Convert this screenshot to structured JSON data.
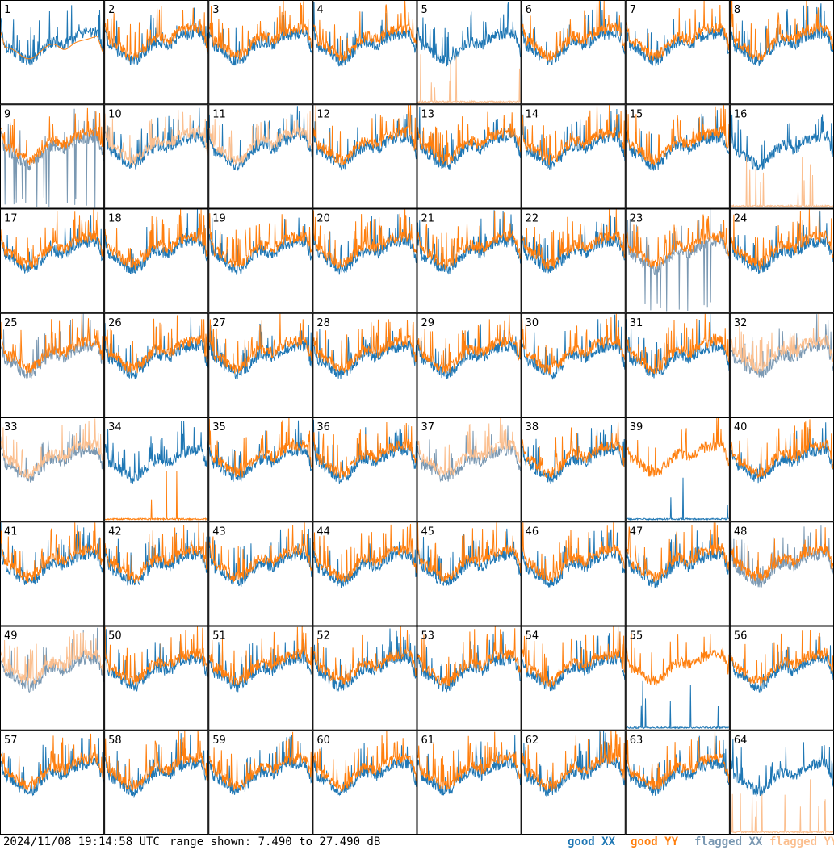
{
  "footer": {
    "timestamp": "2024/11/08 19:14:58 UTC",
    "range_text": "range shown: 7.490 to 27.490 dB"
  },
  "legend": [
    {
      "word": "good",
      "pol": "XX",
      "color": "#1f77b4"
    },
    {
      "word": "good",
      "pol": "YY",
      "color": "#ff7f0e"
    },
    {
      "word": "flagged",
      "pol": "XX",
      "color": "#7a98b2"
    },
    {
      "word": "flagged",
      "pol": "YY",
      "color": "#fbbf8f"
    }
  ],
  "chart_data": {
    "type": "line",
    "layout": "8x8 small multiples, one panel per antenna",
    "y_unit": "dB",
    "ylim": [
      7.49,
      27.49
    ],
    "grid": false,
    "legend_position": "bottom-right",
    "series_colors": {
      "good_xx": "#1f77b4",
      "good_yy": "#ff7f0e",
      "flagged_xx": "#7a98b2",
      "flagged_yy": "#fbbf8f"
    },
    "panels": [
      {
        "id": "1",
        "xx": "good",
        "yy": "good",
        "note": "XX high on right, YY smooth mid"
      },
      {
        "id": "2",
        "xx": "good",
        "yy": "good"
      },
      {
        "id": "3",
        "xx": "good",
        "yy": "good"
      },
      {
        "id": "4",
        "xx": "good",
        "yy": "good"
      },
      {
        "id": "5",
        "xx": "good",
        "yy": "flagged",
        "note": "YY near floor with spikes"
      },
      {
        "id": "6",
        "xx": "good",
        "yy": "good"
      },
      {
        "id": "7",
        "xx": "good",
        "yy": "good"
      },
      {
        "id": "8",
        "xx": "good",
        "yy": "good"
      },
      {
        "id": "9",
        "xx": "flagged",
        "yy": "good",
        "note": "XX dropouts to floor"
      },
      {
        "id": "10",
        "xx": "good",
        "yy": "flagged"
      },
      {
        "id": "11",
        "xx": "good",
        "yy": "flagged"
      },
      {
        "id": "12",
        "xx": "good",
        "yy": "good"
      },
      {
        "id": "13",
        "xx": "good",
        "yy": "good"
      },
      {
        "id": "14",
        "xx": "good",
        "yy": "good"
      },
      {
        "id": "15",
        "xx": "good",
        "yy": "good"
      },
      {
        "id": "16",
        "xx": "good",
        "yy": "flagged",
        "note": "YY near floor with spikes"
      },
      {
        "id": "17",
        "xx": "good",
        "yy": "good"
      },
      {
        "id": "18",
        "xx": "good",
        "yy": "good"
      },
      {
        "id": "19",
        "xx": "good",
        "yy": "good"
      },
      {
        "id": "20",
        "xx": "good",
        "yy": "good"
      },
      {
        "id": "21",
        "xx": "good",
        "yy": "good"
      },
      {
        "id": "22",
        "xx": "good",
        "yy": "good"
      },
      {
        "id": "23",
        "xx": "flagged",
        "yy": "good",
        "note": "XX dropouts to floor"
      },
      {
        "id": "24",
        "xx": "good",
        "yy": "good"
      },
      {
        "id": "25",
        "xx": "flagged",
        "yy": "good"
      },
      {
        "id": "26",
        "xx": "good",
        "yy": "good"
      },
      {
        "id": "27",
        "xx": "good",
        "yy": "good"
      },
      {
        "id": "28",
        "xx": "good",
        "yy": "good"
      },
      {
        "id": "29",
        "xx": "good",
        "yy": "good"
      },
      {
        "id": "30",
        "xx": "good",
        "yy": "good"
      },
      {
        "id": "31",
        "xx": "good",
        "yy": "good"
      },
      {
        "id": "32",
        "xx": "flagged",
        "yy": "flagged"
      },
      {
        "id": "33",
        "xx": "flagged",
        "yy": "flagged"
      },
      {
        "id": "34",
        "xx": "good",
        "yy": "good",
        "note": "YY near floor with spikes"
      },
      {
        "id": "35",
        "xx": "good",
        "yy": "good"
      },
      {
        "id": "36",
        "xx": "good",
        "yy": "good"
      },
      {
        "id": "37",
        "xx": "flagged",
        "yy": "flagged"
      },
      {
        "id": "38",
        "xx": "good",
        "yy": "good"
      },
      {
        "id": "39",
        "xx": "good",
        "yy": "good",
        "note": "XX near floor with spikes"
      },
      {
        "id": "40",
        "xx": "good",
        "yy": "good"
      },
      {
        "id": "41",
        "xx": "good",
        "yy": "good"
      },
      {
        "id": "42",
        "xx": "good",
        "yy": "good"
      },
      {
        "id": "43",
        "xx": "good",
        "yy": "good"
      },
      {
        "id": "44",
        "xx": "good",
        "yy": "good"
      },
      {
        "id": "45",
        "xx": "good",
        "yy": "good"
      },
      {
        "id": "46",
        "xx": "good",
        "yy": "good"
      },
      {
        "id": "47",
        "xx": "good",
        "yy": "good"
      },
      {
        "id": "48",
        "xx": "flagged",
        "yy": "good"
      },
      {
        "id": "49",
        "xx": "flagged",
        "yy": "flagged"
      },
      {
        "id": "50",
        "xx": "good",
        "yy": "good"
      },
      {
        "id": "51",
        "xx": "good",
        "yy": "good"
      },
      {
        "id": "52",
        "xx": "good",
        "yy": "good"
      },
      {
        "id": "53",
        "xx": "good",
        "yy": "good"
      },
      {
        "id": "54",
        "xx": "good",
        "yy": "good"
      },
      {
        "id": "55",
        "xx": "good",
        "yy": "good",
        "note": "XX near floor with spikes"
      },
      {
        "id": "56",
        "xx": "good",
        "yy": "good"
      },
      {
        "id": "57",
        "xx": "good",
        "yy": "good"
      },
      {
        "id": "58",
        "xx": "good",
        "yy": "good"
      },
      {
        "id": "59",
        "xx": "good",
        "yy": "good"
      },
      {
        "id": "60",
        "xx": "good",
        "yy": "good"
      },
      {
        "id": "61",
        "xx": "good",
        "yy": "good"
      },
      {
        "id": "62",
        "xx": "good",
        "yy": "good"
      },
      {
        "id": "63",
        "xx": "good",
        "yy": "good"
      },
      {
        "id": "64",
        "xx": "good",
        "yy": "flagged",
        "note": "YY near floor with spikes"
      }
    ]
  }
}
